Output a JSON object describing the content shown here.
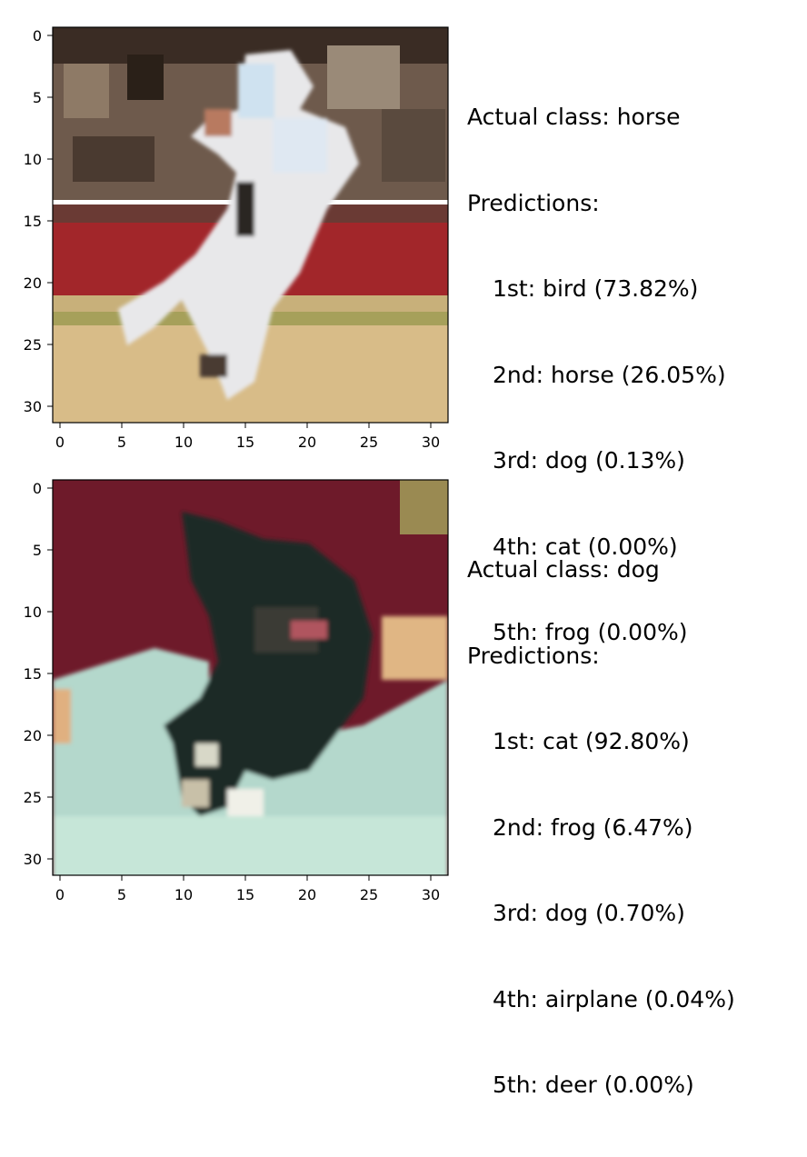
{
  "axis_ticks": {
    "x": [
      "0",
      "5",
      "10",
      "15",
      "20",
      "25",
      "30"
    ],
    "y": [
      "0",
      "5",
      "10",
      "15",
      "20",
      "25",
      "30"
    ]
  },
  "panels": [
    {
      "actual_label": "Actual class: horse",
      "predictions_label": "Predictions:",
      "predictions": [
        "1st: bird (73.82%)",
        "2nd: horse (26.05%)",
        "3rd: dog (0.13%)",
        "4th: cat (0.00%)",
        "5th: frog (0.00%)"
      ],
      "image_subject": "white horse rearing in arena"
    },
    {
      "actual_label": "Actual class: dog",
      "predictions_label": "Predictions:",
      "predictions": [
        "1st: cat (92.80%)",
        "2nd: frog (6.47%)",
        "3rd: dog (0.70%)",
        "4th: airplane (0.04%)",
        "5th: deer (0.00%)"
      ],
      "image_subject": "dark dog on light teal blanket"
    }
  ]
}
